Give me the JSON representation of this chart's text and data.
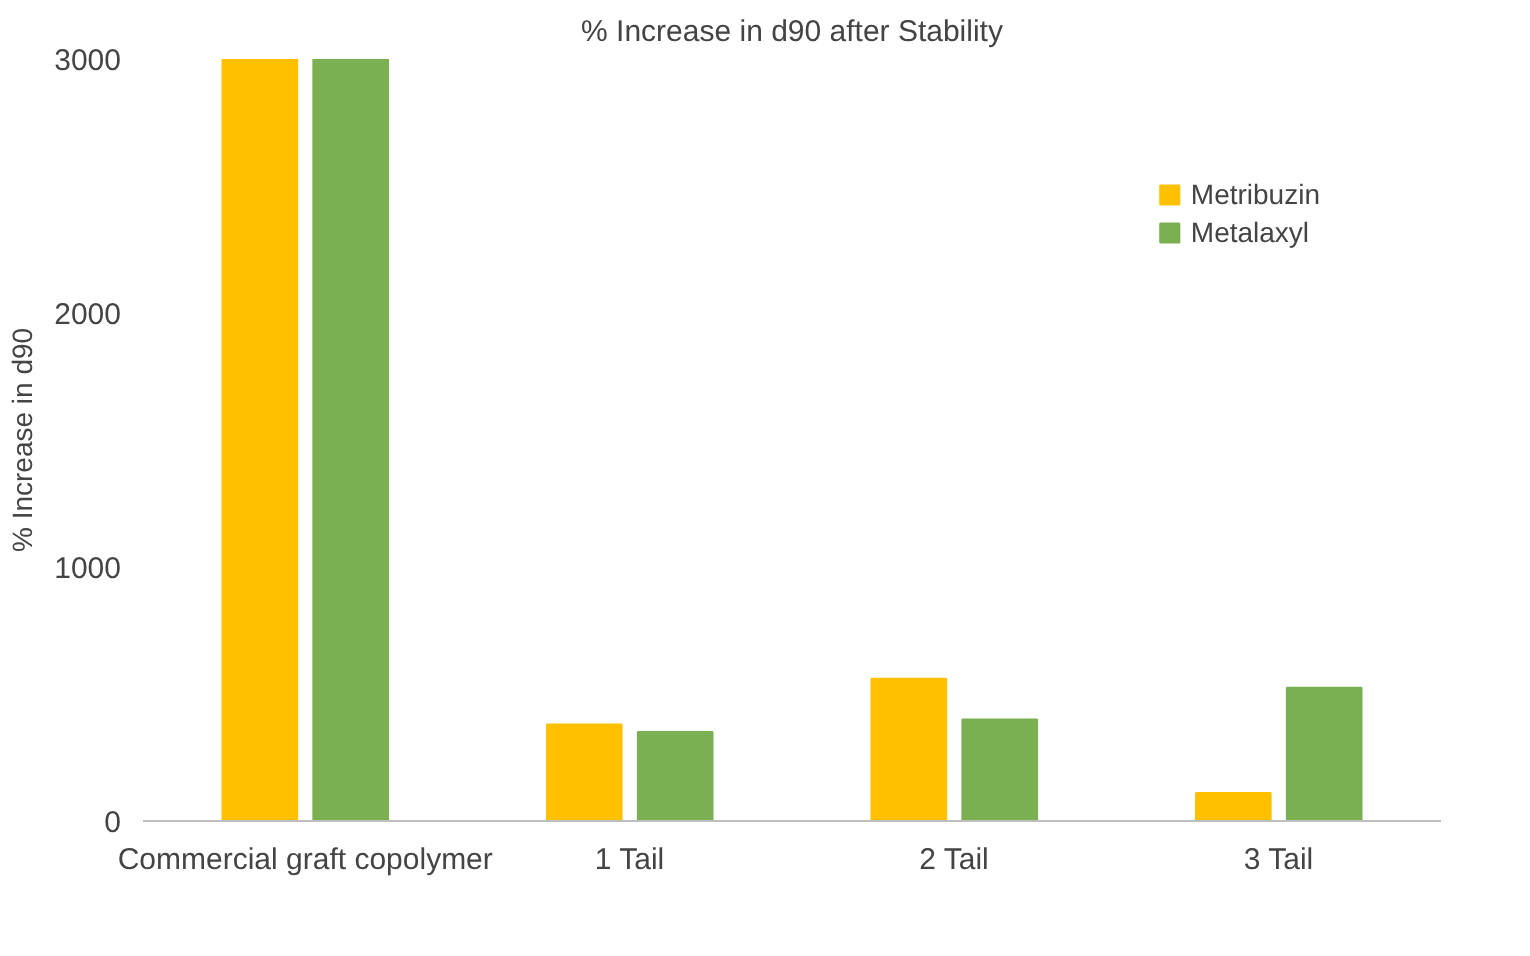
{
  "chart_data": {
    "type": "bar",
    "title": "% Increase in d90 after Stability",
    "ylabel": "% Increase in d90",
    "categories": [
      "Commercial graft copolymer",
      "1 Tail",
      "2 Tail",
      "3 Tail"
    ],
    "series": [
      {
        "name": "Metribuzin",
        "color": "#ffc000",
        "values": [
          3000,
          380,
          560,
          110
        ]
      },
      {
        "name": "Metalaxyl",
        "color": "#7ab051",
        "values": [
          3000,
          350,
          400,
          525
        ]
      }
    ],
    "ylim": [
      0,
      3000
    ],
    "yticks": [
      0,
      1000,
      2000,
      3000
    ],
    "grid": false,
    "legend": "top right"
  }
}
